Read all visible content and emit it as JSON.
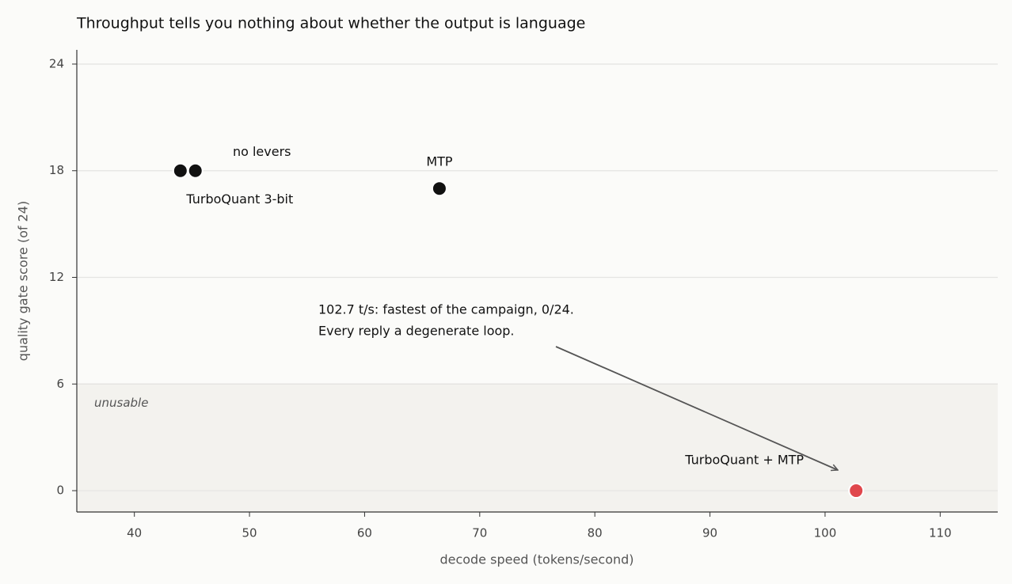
{
  "chart_data": {
    "type": "scatter",
    "title": "Throughput tells you nothing about whether the output is language",
    "x_label": "decode speed (tokens/second)",
    "y_label": "quality gate score (of 24)",
    "x": [
      44,
      45.3,
      66.5,
      102.7
    ],
    "values": [
      18,
      18,
      17,
      0
    ],
    "point_labels": [
      "TurboQuant 3-bit",
      "no levers",
      "MTP",
      "TurboQuant + MTP"
    ],
    "colors": [
      "#111111",
      "#111111",
      "#111111",
      "#e0474c"
    ],
    "xlim": [
      35,
      115
    ],
    "xticks": [
      40,
      50,
      60,
      70,
      80,
      90,
      100,
      110
    ],
    "ylim": [
      -1.2,
      24.8
    ],
    "yticks": [
      0,
      6,
      12,
      18,
      24
    ],
    "grid": true,
    "shaded_region": {
      "label": "unusable",
      "ymax": 6
    },
    "annotation": [
      "102.7 t/s: fastest of the campaign, 0/24.",
      "Every reply a degenerate loop."
    ]
  }
}
